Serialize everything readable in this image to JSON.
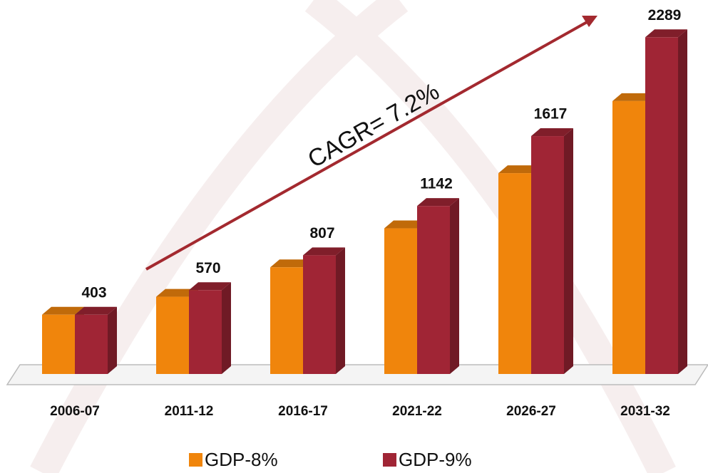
{
  "chart_data": {
    "type": "bar3d",
    "categories": [
      "2006-07",
      "2011-12",
      "2016-17",
      "2021-22",
      "2026-27",
      "2031-32"
    ],
    "series": [
      {
        "name": "GDP-8%",
        "color": "#f0850c",
        "values": [
          403,
          525,
          725,
          990,
          1365,
          1855
        ]
      },
      {
        "name": "GDP-9%",
        "color": "#a02535",
        "values": [
          403,
          570,
          807,
          1142,
          1617,
          2289
        ]
      }
    ],
    "ylim": [
      0,
      2300
    ],
    "annotation": "CAGR= 7.2%"
  }
}
